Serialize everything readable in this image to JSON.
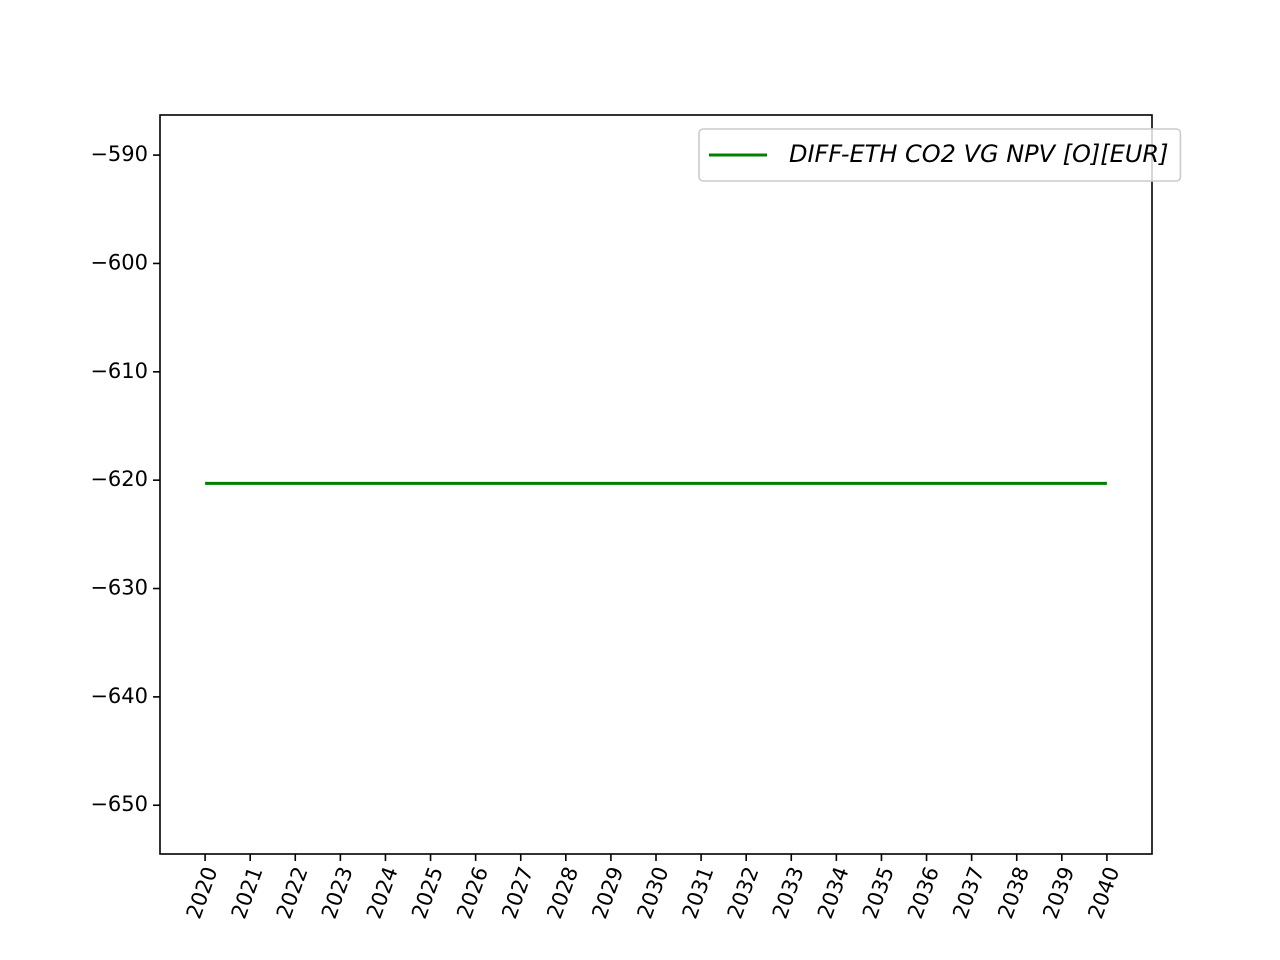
{
  "chart_data": {
    "type": "line",
    "title": "",
    "xlabel": "",
    "ylabel": "",
    "x": [
      2020,
      2021,
      2022,
      2023,
      2024,
      2025,
      2026,
      2027,
      2028,
      2029,
      2030,
      2031,
      2032,
      2033,
      2034,
      2035,
      2036,
      2037,
      2038,
      2039,
      2040
    ],
    "x_tick_labels": [
      "2020",
      "2021",
      "2022",
      "2023",
      "2024",
      "2025",
      "2026",
      "2027",
      "2028",
      "2029",
      "2030",
      "2031",
      "2032",
      "2033",
      "2034",
      "2035",
      "2036",
      "2037",
      "2038",
      "2039",
      "2040"
    ],
    "xlim": [
      2019,
      2041
    ],
    "y_ticks": [
      -650,
      -640,
      -630,
      -620,
      -610,
      -600,
      -590
    ],
    "y_tick_labels": [
      "−650",
      "−640",
      "−630",
      "−620",
      "−610",
      "−600",
      "−590"
    ],
    "ylim": [
      -654.5,
      -586.3
    ],
    "series": [
      {
        "name": "DIFF-ETH CO2 VG NPV [O][EUR]",
        "color": "#008000",
        "values": [
          -620.3,
          -620.3,
          -620.3,
          -620.3,
          -620.3,
          -620.3,
          -620.3,
          -620.3,
          -620.3,
          -620.3,
          -620.3,
          -620.3,
          -620.3,
          -620.3,
          -620.3,
          -620.3,
          -620.3,
          -620.3,
          -620.3,
          -620.3,
          -620.3
        ]
      }
    ],
    "grid": false,
    "legend": "top-right",
    "x_tick_rotation_deg": 70
  }
}
